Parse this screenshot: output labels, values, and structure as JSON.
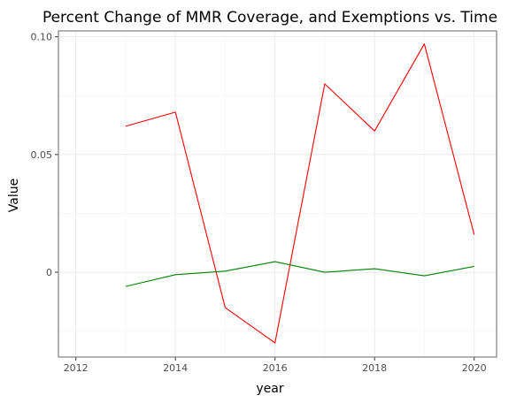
{
  "chart_data": {
    "type": "line",
    "title": "Percent Change of MMR Coverage, and Exemptions vs. Time",
    "xlabel": "year",
    "ylabel": "Value",
    "xlim": [
      2011.65,
      2020.45
    ],
    "ylim": [
      -0.036,
      0.1025
    ],
    "x_ticks": [
      2012,
      2014,
      2016,
      2018,
      2020
    ],
    "x_tick_labels": [
      "2012",
      "2014",
      "2016",
      "2018",
      "2020"
    ],
    "y_ticks": [
      0.0,
      0.05,
      0.1
    ],
    "y_tick_labels": [
      "0",
      "0.05",
      "0.10"
    ],
    "grid": true,
    "legend": "none",
    "x": [
      2013,
      2014,
      2015,
      2016,
      2017,
      2018,
      2019,
      2020
    ],
    "series": [
      {
        "color": "#ff0000",
        "values": [
          0.062,
          0.068,
          -0.015,
          -0.03,
          0.08,
          0.06,
          0.097,
          0.016
        ]
      },
      {
        "color": "#008000",
        "values": [
          -0.006,
          -0.001,
          0.0005,
          0.0045,
          0.0,
          0.0015,
          -0.0015,
          0.0025
        ]
      }
    ]
  }
}
